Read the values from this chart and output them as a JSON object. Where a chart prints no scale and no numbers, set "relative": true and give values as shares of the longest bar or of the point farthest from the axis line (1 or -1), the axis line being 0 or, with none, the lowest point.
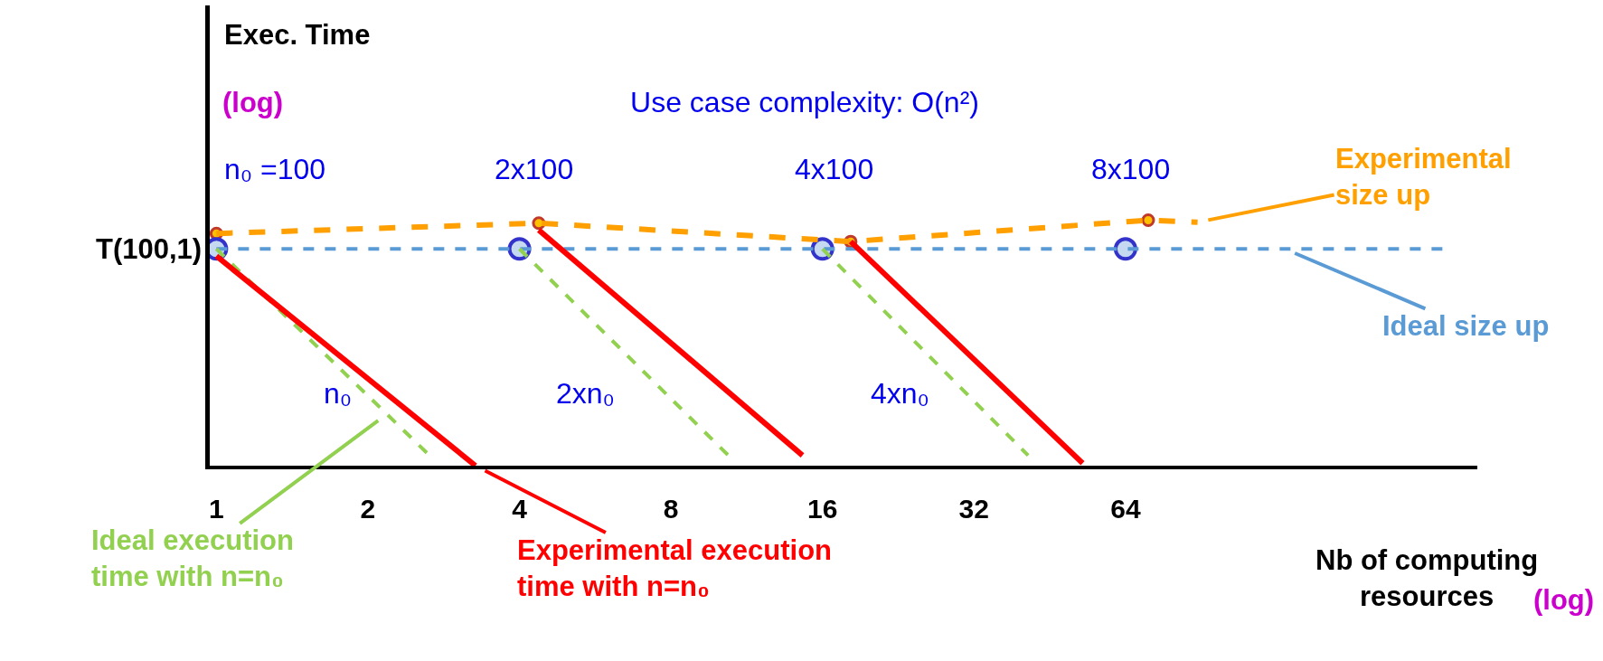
{
  "chart_data": {
    "type": "line",
    "relative": true,
    "log": "x",
    "title": "Use case complexity: O(n²)",
    "xlabel": "Nb of computing resources",
    "xlim": [
      0.97,
      320
    ],
    "xticks": [
      1,
      2,
      4,
      8,
      16,
      32,
      64
    ],
    "legend": "bottom",
    "series": [
      {
        "name": "Experimental size up",
        "color": "#ffa000",
        "line_style": "dashed",
        "marker": "circle",
        "x": [
          1,
          4.37,
          18.2,
          71,
          89
        ],
        "values": [
          0.946,
          0.988,
          0.913,
          1.0,
          0.992
        ]
      },
      {
        "name": "Ideal size up",
        "color": "#5b9bd5",
        "line_style": "dashed",
        "marker": "circle",
        "x": [
          1,
          4,
          16,
          64,
          275
        ],
        "values": [
          0.883,
          0.883,
          0.883,
          0.883,
          0.883
        ]
      },
      {
        "name": "Ideal execution time with n=n₀",
        "color": "#92d050",
        "line_style": "dashed",
        "x": [
          1,
          2.65
        ],
        "values": [
          0.883,
          0.042
        ]
      },
      {
        "color": "#92d050",
        "line_style": "dashed",
        "x": [
          4,
          10.4
        ],
        "values": [
          0.883,
          0.042
        ]
      },
      {
        "color": "#92d050",
        "line_style": "dashed",
        "x": [
          16,
          41
        ],
        "values": [
          0.883,
          0.042
        ]
      },
      {
        "name": "Experimental execution time with n=n₀",
        "color": "#ff0000",
        "line_style": "solid",
        "x": [
          1,
          3.27
        ],
        "values": [
          0.854,
          0.0
        ]
      },
      {
        "color": "#ff0000",
        "line_style": "solid",
        "x": [
          4.37,
          14.6
        ],
        "values": [
          0.96,
          0.042
        ]
      },
      {
        "color": "#ff0000",
        "line_style": "solid",
        "x": [
          18.2,
          52.6
        ],
        "values": [
          0.913,
          0.01
        ]
      }
    ],
    "annotations": [
      "Exec. Time",
      "(log)",
      "(log)",
      "n₀ =100",
      "2x100",
      "4x100",
      "8x100",
      "n₀",
      "2xn₀",
      "4xn₀",
      {
        "text": "T(100,1)",
        "x": 1,
        "y": 0.883
      }
    ]
  }
}
